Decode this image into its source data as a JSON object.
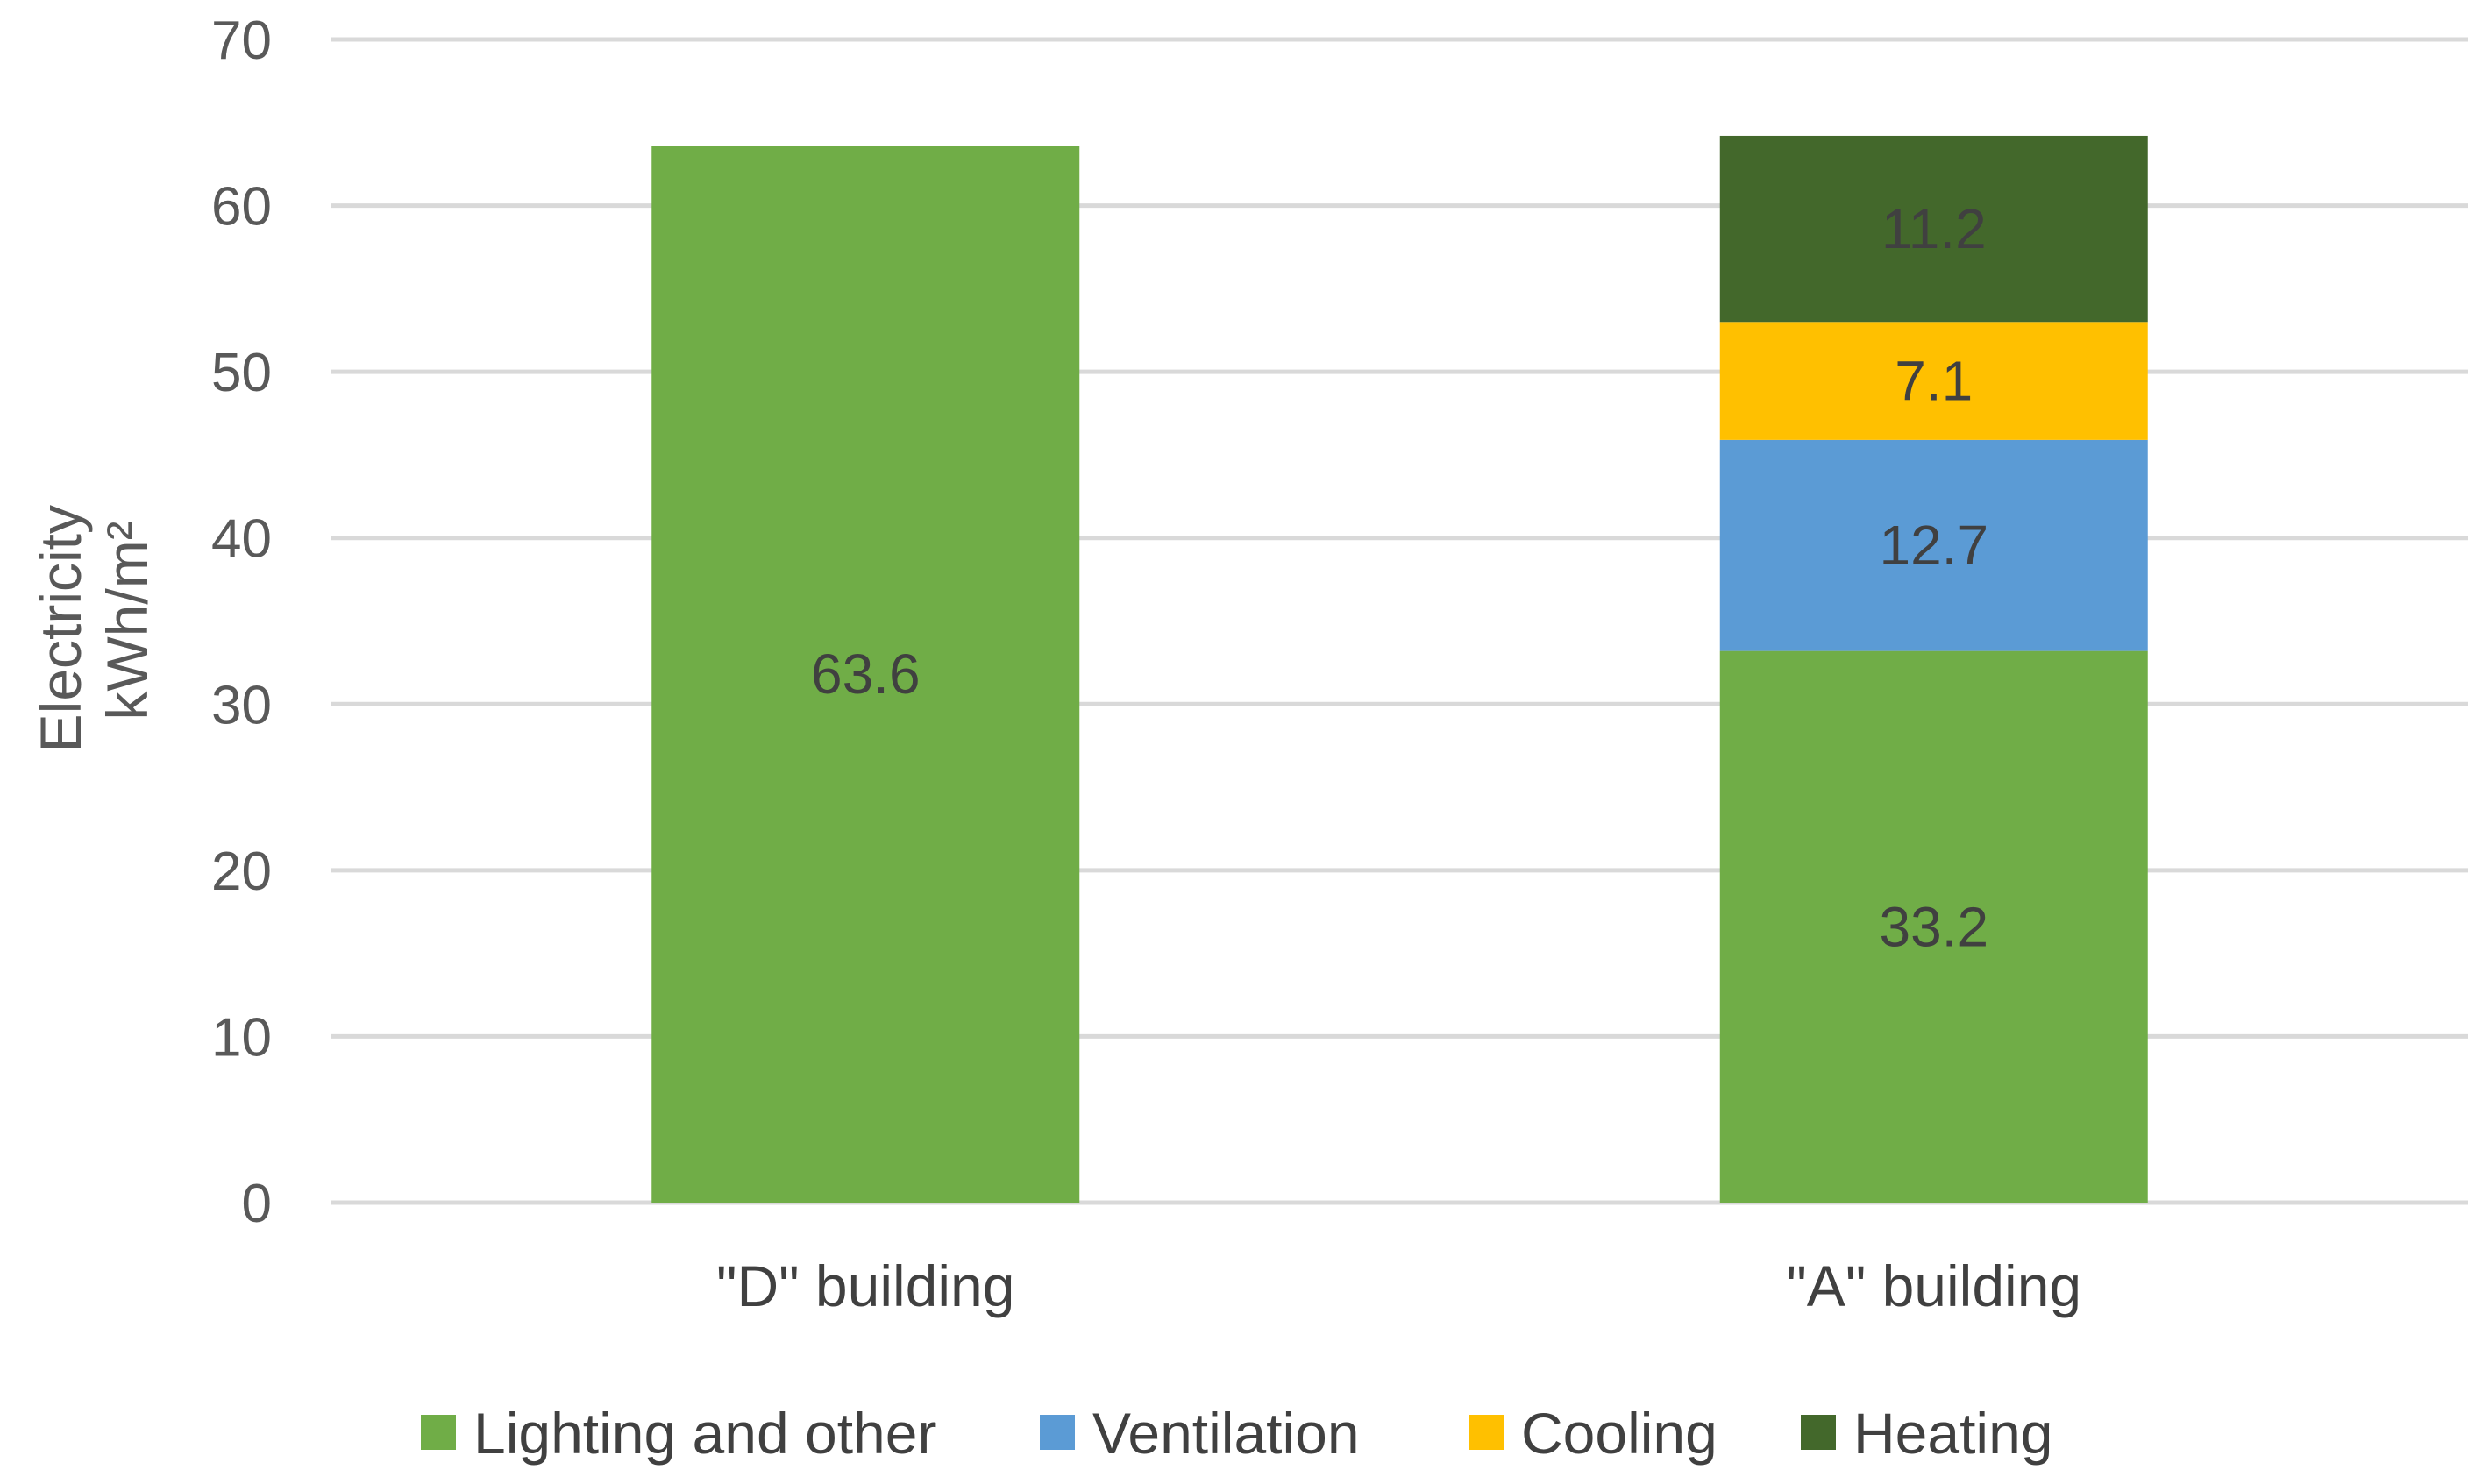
{
  "chart_data": {
    "type": "bar",
    "stacked": true,
    "categories": [
      "\"D\" building",
      "\"A\" building"
    ],
    "series": [
      {
        "name": "Lighting and other",
        "color": "#70AD47",
        "values": [
          63.6,
          33.2
        ],
        "labels": [
          "63.6",
          "33.2"
        ]
      },
      {
        "name": "Ventilation",
        "color": "#5B9BD5",
        "values": [
          0,
          12.7
        ],
        "labels": [
          "",
          "12.7"
        ]
      },
      {
        "name": "Cooling",
        "color": "#FFC000",
        "values": [
          0,
          7.1
        ],
        "labels": [
          "",
          "7.1"
        ]
      },
      {
        "name": "Heating",
        "color": "#43682B",
        "values": [
          0,
          11.2
        ],
        "labels": [
          "",
          "11.2"
        ]
      }
    ],
    "ylabel_line1": "Electricity",
    "ylabel_line2": "kWh/m²",
    "ylim": [
      0,
      70
    ],
    "yticks": [
      0,
      10,
      20,
      30,
      40,
      50,
      60,
      70
    ],
    "grid": true,
    "legend_position": "bottom"
  }
}
